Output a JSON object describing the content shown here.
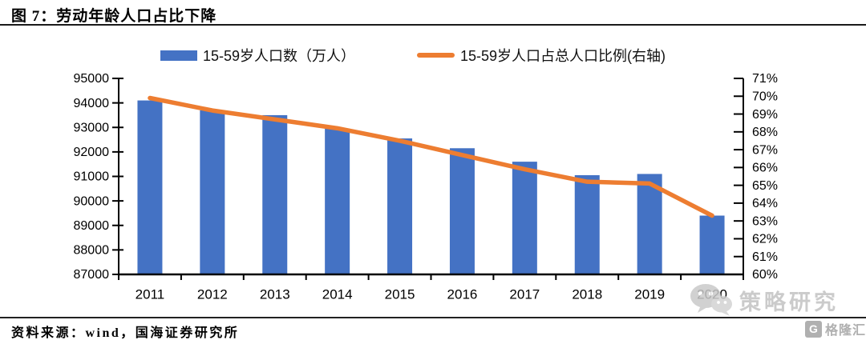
{
  "header": {
    "title": "图 7：劳动年龄人口占比下降"
  },
  "legend": {
    "bar": {
      "label": "15-59岁人口数（万人）",
      "color": "#4472C4"
    },
    "line": {
      "label": "15-59岁人口占总人口比例(右轴)",
      "color": "#ED7D31"
    }
  },
  "chart_data": {
    "type": "combo-bar-line",
    "categories": [
      "2011",
      "2012",
      "2013",
      "2014",
      "2015",
      "2016",
      "2017",
      "2018",
      "2019",
      "2020"
    ],
    "series": [
      {
        "name": "15-59岁人口数（万人）",
        "type": "bar",
        "axis": "left",
        "color": "#4472C4",
        "values": [
          94100,
          93700,
          93500,
          92950,
          92550,
          92150,
          91600,
          91050,
          91100,
          89400
        ]
      },
      {
        "name": "15-59岁人口占总人口比例(右轴)",
        "type": "line",
        "axis": "right",
        "color": "#ED7D31",
        "values": [
          69.9,
          69.2,
          68.7,
          68.2,
          67.5,
          66.7,
          65.9,
          65.2,
          65.1,
          63.3
        ]
      }
    ],
    "left_axis": {
      "min": 87000,
      "max": 95000,
      "step": 1000,
      "tick_labels": [
        "95000",
        "94000",
        "93000",
        "92000",
        "91000",
        "90000",
        "89000",
        "88000",
        "87000"
      ]
    },
    "right_axis": {
      "min": 60,
      "max": 71,
      "step": 1,
      "tick_labels": [
        "71%",
        "70%",
        "69%",
        "68%",
        "67%",
        "66%",
        "65%",
        "64%",
        "63%",
        "62%",
        "61%",
        "60%"
      ]
    },
    "grid": false,
    "legend_position": "top"
  },
  "watermark": {
    "text": "策略研究"
  },
  "logo": {
    "icon_letter": "G",
    "text": "格隆汇"
  },
  "footer": {
    "source": "资料来源：wind，国海证券研究所"
  }
}
